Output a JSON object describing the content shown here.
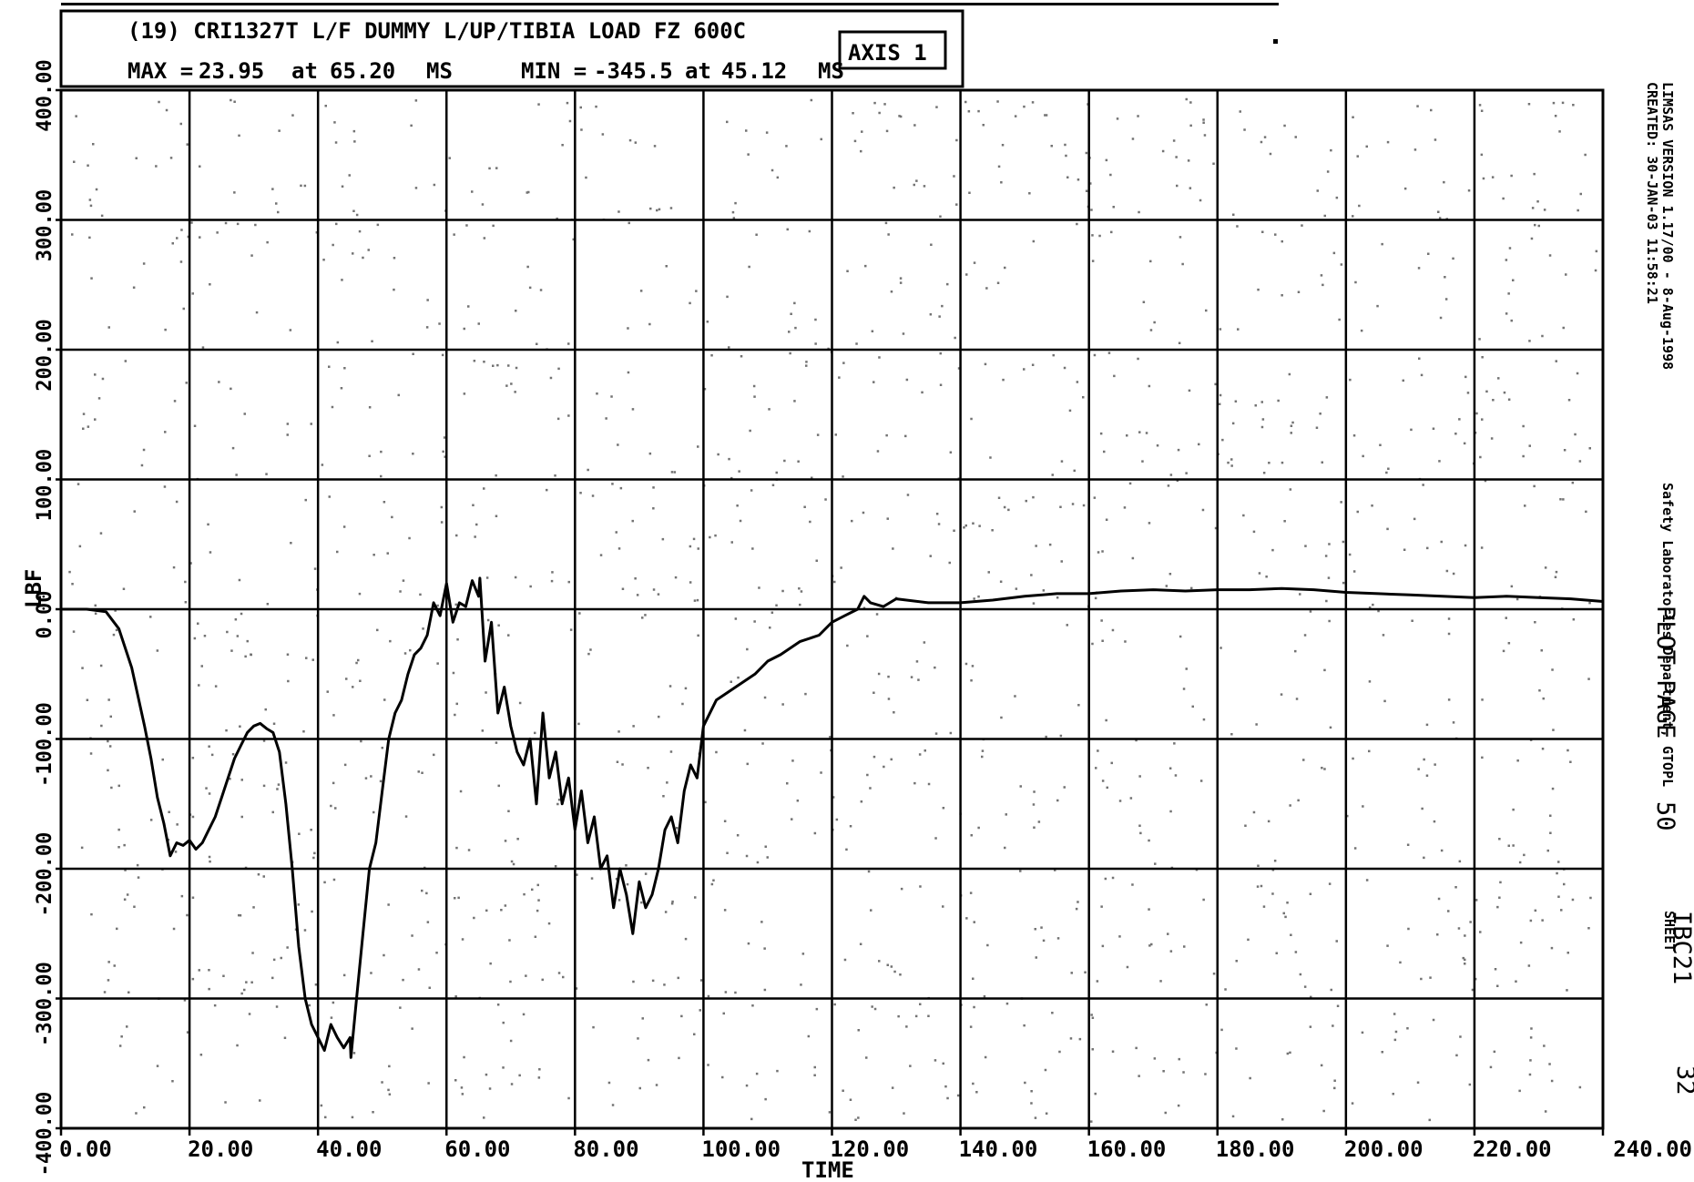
{
  "header": {
    "title": "(19) CRI1327T L/F DUMMY L/UP/TIBIA LOAD FZ 600C",
    "max_label": "MAX =",
    "max_value": "23.95",
    "max_at": "at",
    "max_time": "65.20",
    "max_unit": "MS",
    "min_label": "MIN =",
    "min_value": "-345.5",
    "min_at": "at",
    "min_time": "45.12",
    "min_unit": "MS",
    "axis_box": "AXIS 1"
  },
  "side": {
    "version_line": "LIMSAS VERSION 1.17/00 - 8-Aug-1998",
    "lab_line": "Safety Laboratories Department, GTOPL",
    "created_line": "CREATED: 30-JAN-03 11:58:21",
    "plot_page_label": "PLOT PAGE",
    "plot_page_number": "50",
    "id": "IBC21",
    "sheet_label": "SHEET",
    "sheet_number": "32"
  },
  "chart_data": {
    "type": "line",
    "xlabel": "TIME",
    "ylabel": "LBF",
    "xlim": [
      0,
      240
    ],
    "ylim": [
      -400,
      400
    ],
    "x_ticks": [
      "0.00",
      "20.00",
      "40.00",
      "60.00",
      "80.00",
      "100.00",
      "120.00",
      "140.00",
      "160.00",
      "180.00",
      "200.00",
      "220.00",
      "240.00"
    ],
    "y_ticks": [
      "400.00",
      "300.00",
      "200.00",
      "100.00",
      "0.00",
      "-100.00",
      "-200.00",
      "-300.00",
      "-400.00"
    ],
    "grid": true,
    "series": [
      {
        "x": [
          0,
          4,
          7,
          9,
          11,
          13,
          14,
          15,
          16,
          17,
          18,
          19,
          20,
          21,
          22,
          23,
          24,
          25,
          26,
          27,
          28,
          29,
          30,
          31,
          32,
          33,
          34,
          35,
          36,
          37,
          38,
          39,
          40,
          41,
          42,
          43,
          44,
          45,
          45.12,
          46,
          47,
          48,
          49,
          50,
          51,
          52,
          53,
          54,
          55,
          56,
          57,
          58,
          59,
          60,
          61,
          62,
          63,
          64,
          65,
          65.2,
          66,
          67,
          68,
          69,
          70,
          71,
          72,
          73,
          74,
          75,
          76,
          77,
          78,
          79,
          80,
          81,
          82,
          83,
          84,
          85,
          86,
          87,
          88,
          89,
          90,
          91,
          92,
          93,
          94,
          95,
          96,
          97,
          98,
          99,
          100,
          102,
          105,
          108,
          110,
          112,
          115,
          118,
          120,
          122,
          124,
          125,
          126,
          128,
          130,
          135,
          140,
          145,
          150,
          155,
          160,
          165,
          170,
          175,
          180,
          185,
          190,
          195,
          200,
          205,
          210,
          215,
          220,
          225,
          230,
          235,
          240
        ],
        "y": [
          0,
          0,
          -2,
          -15,
          -45,
          -90,
          -115,
          -145,
          -165,
          -190,
          -180,
          -182,
          -178,
          -185,
          -180,
          -170,
          -160,
          -145,
          -130,
          -115,
          -105,
          -95,
          -90,
          -88,
          -92,
          -95,
          -110,
          -150,
          -200,
          -260,
          -300,
          -320,
          -330,
          -340,
          -320,
          -330,
          -338,
          -330,
          -345.5,
          -300,
          -250,
          -200,
          -180,
          -140,
          -100,
          -80,
          -70,
          -50,
          -35,
          -30,
          -20,
          5,
          -5,
          20,
          -10,
          5,
          2,
          22,
          10,
          23.95,
          -40,
          -10,
          -80,
          -60,
          -90,
          -110,
          -120,
          -100,
          -150,
          -80,
          -130,
          -110,
          -150,
          -130,
          -170,
          -140,
          -180,
          -160,
          -200,
          -190,
          -230,
          -200,
          -220,
          -250,
          -210,
          -230,
          -220,
          -200,
          -170,
          -160,
          -180,
          -140,
          -120,
          -130,
          -90,
          -70,
          -60,
          -50,
          -40,
          -35,
          -25,
          -20,
          -10,
          -5,
          0,
          10,
          5,
          2,
          8,
          5,
          5,
          7,
          10,
          12,
          12,
          14,
          15,
          14,
          15,
          15,
          16,
          15,
          13,
          12,
          11,
          10,
          9,
          10,
          9,
          8,
          6
        ]
      }
    ]
  }
}
